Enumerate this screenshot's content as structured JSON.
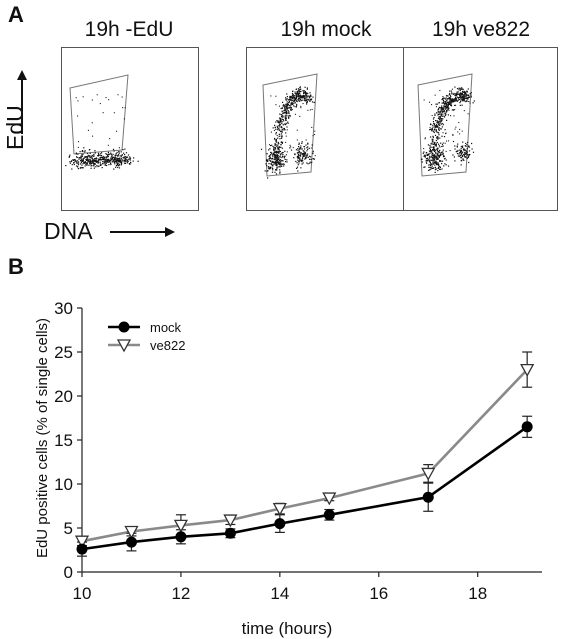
{
  "panel_a": {
    "letter": "A",
    "plots": [
      {
        "title": "19h -EdU"
      },
      {
        "title": "19h mock"
      },
      {
        "title": "19h ve822"
      }
    ],
    "y_axis_label": "EdU",
    "x_axis_label": "DNA"
  },
  "panel_b": {
    "letter": "B"
  },
  "chart_data": {
    "type": "line",
    "title": "",
    "xlabel": "time (hours)",
    "ylabel": "EdU positive cells (% of single cells)",
    "xlim": [
      10,
      19.3
    ],
    "ylim": [
      0,
      30
    ],
    "xticks": [
      10,
      12,
      14,
      16,
      18
    ],
    "yticks": [
      0,
      5,
      10,
      15,
      20,
      25,
      30
    ],
    "x": [
      10,
      11,
      12,
      13,
      14,
      15,
      17,
      19
    ],
    "legend_position": "top-left",
    "grid": false,
    "series": [
      {
        "name": "mock",
        "marker": "filled-circle",
        "color": "#000000",
        "values": [
          2.6,
          3.4,
          4.0,
          4.4,
          5.5,
          6.5,
          8.5,
          16.5
        ],
        "errors": [
          0.8,
          1.0,
          0.8,
          0.5,
          1.0,
          0.6,
          1.6,
          1.2
        ]
      },
      {
        "name": "ve822",
        "marker": "open-triangle-down",
        "color": "#8a8a8a",
        "values": [
          3.5,
          4.6,
          5.3,
          5.9,
          7.2,
          8.4,
          11.2,
          23.0
        ],
        "errors": [
          0.5,
          0.5,
          1.2,
          0.5,
          0.6,
          0.3,
          1.0,
          2.0
        ]
      }
    ]
  }
}
